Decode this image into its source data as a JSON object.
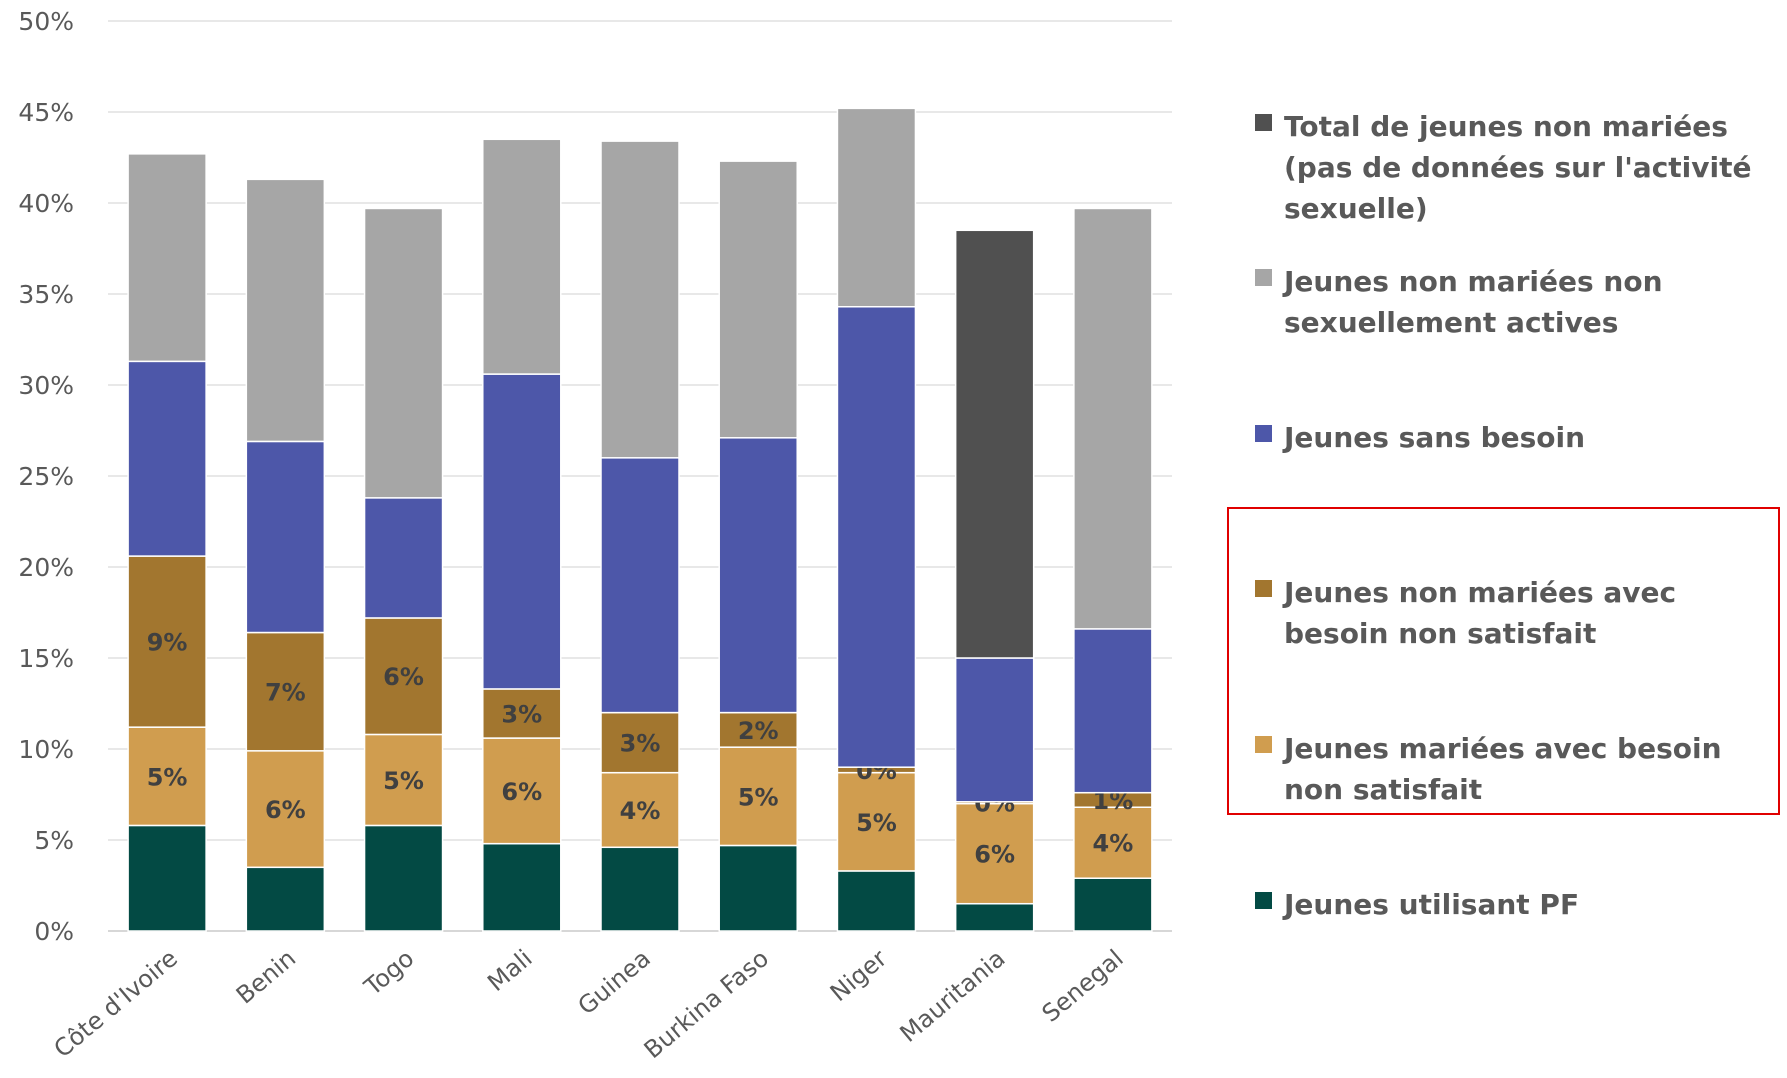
{
  "chart_data": {
    "type": "bar",
    "stacked": true,
    "categories": [
      "Côte d'Ivoire",
      "Benin",
      "Togo",
      "Mali",
      "Guinea",
      "Burkina Faso",
      "Niger",
      "Mauritania",
      "Senegal"
    ],
    "yticks": [
      "0%",
      "5%",
      "10%",
      "15%",
      "20%",
      "25%",
      "30%",
      "35%",
      "40%",
      "45%",
      "50%"
    ],
    "ylim": [
      0,
      50
    ],
    "grid": true,
    "legend_position": "right",
    "series": [
      {
        "name": "Jeunes utilisant PF",
        "color": "#034a44",
        "values": [
          5.8,
          3.5,
          5.8,
          4.8,
          4.6,
          4.7,
          3.3,
          1.5,
          2.9
        ],
        "labels": null
      },
      {
        "name": "Jeunes mariées avec besoin non satisfait",
        "color": "#d09d4f",
        "values": [
          5.4,
          6.4,
          5.0,
          5.8,
          4.1,
          5.4,
          5.4,
          5.5,
          3.9
        ],
        "labels": [
          "5%",
          "6%",
          "5%",
          "6%",
          "4%",
          "5%",
          "5%",
          "6%",
          "4%"
        ]
      },
      {
        "name": "Jeunes non mariées avec besoin non satisfait",
        "color": "#a2762f",
        "values": [
          9.4,
          6.5,
          6.4,
          2.7,
          3.3,
          1.9,
          0.3,
          0.1,
          0.8
        ],
        "labels": [
          "9%",
          "7%",
          "6%",
          "3%",
          "3%",
          "2%",
          "0%",
          "0%",
          "1%"
        ]
      },
      {
        "name": "Jeunes sans besoin",
        "color": "#4d57a9",
        "values": [
          10.7,
          10.5,
          6.6,
          17.3,
          14.0,
          15.1,
          25.3,
          7.9,
          9.0
        ],
        "labels": null
      },
      {
        "name": "Jeunes non mariées non sexuellement actives",
        "color": "#a6a6a6",
        "values": [
          11.4,
          14.4,
          15.9,
          12.9,
          17.4,
          15.2,
          10.9,
          0,
          23.1
        ],
        "labels": null
      },
      {
        "name": "Total de jeunes non mariées (pas de données sur l'activité sexuelle)",
        "color": "#505050",
        "values": [
          0,
          0,
          0,
          0,
          0,
          0,
          0,
          23.5,
          0
        ],
        "labels": null
      }
    ]
  },
  "legend": [
    {
      "label": "Total de jeunes non mariées (pas de données sur l'activité sexuelle)",
      "color": "#505050"
    },
    {
      "label": "Jeunes non mariées non sexuellement actives",
      "color": "#a6a6a6"
    },
    {
      "label": "Jeunes sans besoin",
      "color": "#4d57a9"
    },
    {
      "label": "Jeunes non mariées avec besoin non satisfait",
      "color": "#a2762f"
    },
    {
      "label": "Jeunes mariées avec besoin non satisfait",
      "color": "#d09d4f"
    },
    {
      "label": "Jeunes utilisant PF",
      "color": "#034a44"
    }
  ],
  "highlight_color": "#e00000"
}
